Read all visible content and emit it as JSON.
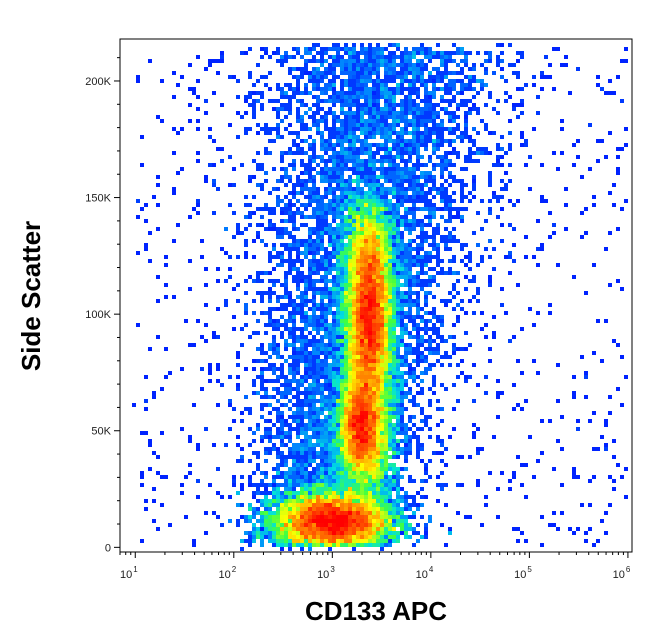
{
  "chart_data": {
    "type": "heatmap",
    "subtype": "flow-cytometry-density-scatter",
    "xlabel": "CD133 APC",
    "ylabel": "Side Scatter",
    "x_scale": "log",
    "xlim": [
      7,
      1100000
    ],
    "ylim": [
      -2000,
      218000
    ],
    "x_ticks": [
      {
        "value": 10,
        "base": "10",
        "exp": "1"
      },
      {
        "value": 100,
        "base": "10",
        "exp": "2"
      },
      {
        "value": 1000,
        "base": "10",
        "exp": "3"
      },
      {
        "value": 10000,
        "base": "10",
        "exp": "4"
      },
      {
        "value": 100000,
        "base": "10",
        "exp": "5"
      },
      {
        "value": 1000000,
        "base": "10",
        "exp": "6"
      }
    ],
    "y_ticks": [
      {
        "value": 0,
        "label": "0"
      },
      {
        "value": 50000,
        "label": "50K"
      },
      {
        "value": 100000,
        "label": "100K"
      },
      {
        "value": 150000,
        "label": "150K"
      },
      {
        "value": 200000,
        "label": "200K"
      }
    ],
    "colormap": [
      "#0000ff",
      "#0080ff",
      "#00e0e0",
      "#40ff40",
      "#ffff00",
      "#ff8000",
      "#ff0000"
    ],
    "grid": false,
    "density_peaks": [
      {
        "x": 1000,
        "y": 10000,
        "note": "main dense population (red)"
      },
      {
        "x": 2300,
        "y": 105000,
        "note": "secondary population (yellow-green)"
      },
      {
        "x": 2000,
        "y": 52000,
        "note": "intermediate population (green)"
      }
    ]
  }
}
